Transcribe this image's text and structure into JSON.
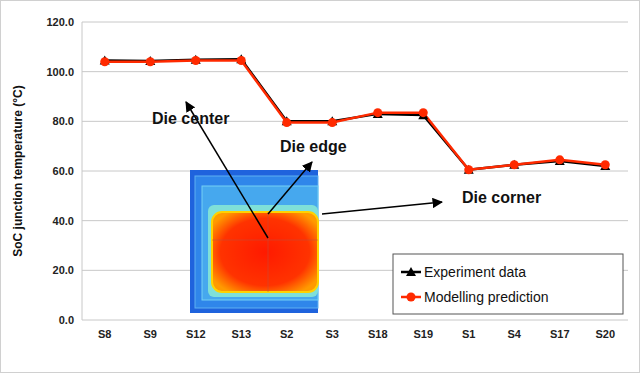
{
  "chart_data": {
    "type": "line",
    "y_label": "SoC junction temperature (°C)",
    "categories": [
      "S8",
      "S9",
      "S12",
      "S13",
      "S2",
      "S3",
      "S18",
      "S19",
      "S1",
      "S4",
      "S17",
      "S20"
    ],
    "series": [
      {
        "name": "Experiment data",
        "color": "#000000",
        "marker": "triangle",
        "line_style": "solid",
        "values": [
          104.5,
          104.3,
          104.8,
          105.0,
          80.0,
          80.0,
          83.0,
          82.5,
          60.5,
          62.5,
          64.0,
          62.0
        ]
      },
      {
        "name": "Modelling prediction",
        "color": "#ff2a00",
        "marker": "circle",
        "line_style": "solid",
        "values": [
          104.0,
          104.0,
          104.5,
          104.5,
          79.5,
          79.5,
          83.5,
          83.5,
          60.5,
          62.5,
          64.5,
          62.5
        ]
      }
    ],
    "ylim": [
      0,
      120
    ],
    "yticks": [
      {
        "value": 0,
        "label": "0.0"
      },
      {
        "value": 20,
        "label": "20.0"
      },
      {
        "value": 40,
        "label": "40.0"
      },
      {
        "value": 60,
        "label": "60.0"
      },
      {
        "value": 80,
        "label": "80.0"
      },
      {
        "value": 100,
        "label": "100.0"
      },
      {
        "value": 120,
        "label": "120.0"
      }
    ],
    "grid": true,
    "legend": "bottom-right",
    "annotations": [
      "Die center",
      "Die edge",
      "Die corner"
    ]
  }
}
